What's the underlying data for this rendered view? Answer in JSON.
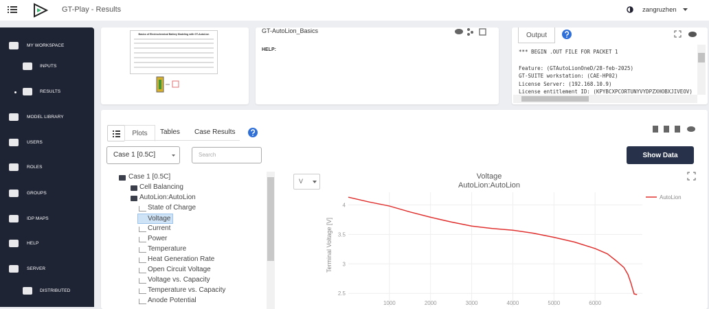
{
  "header": {
    "title": "GT-Play - Results",
    "user": "zangruzhen"
  },
  "sidebar": [
    "MY WORKSPACE",
    "INPUTS",
    "RESULTS",
    "MODEL LIBRARY",
    "USERS",
    "ROLES",
    "GROUPS",
    "IDP MAPS",
    "HELP",
    "SERVER",
    "DISTRIBUTED"
  ],
  "model_card": {
    "doc_title": "Basics of Electrochemical Battery Modeling with GT-AutoLion",
    "name": "GT-AutoLion_Basics",
    "help": "HELP:"
  },
  "output": {
    "tab": "Output",
    "lines": [
      "*** BEGIN .OUT FILE FOR PACKET 1",
      "Feature: (GTAutoLionOneD/28-feb-2025)",
      "GT-SUITE workstation: (CAE-HP02)",
      "License Server: (192.168.10.9)",
      "License entitlement ID: (KPYBCXPCORTUNYVYDPZXHOBXJIVEOV)"
    ]
  },
  "results": {
    "tabs": [
      "Plots",
      "Tables",
      "Case Results"
    ],
    "case": "Case 1 [0.5C]",
    "search": "Search",
    "button": "Show Data",
    "unit": "V",
    "tree": {
      "root": "Case 1 [0.5C]",
      "groups": [
        {
          "label": "Cell Balancing",
          "items": []
        },
        {
          "label": "AutoLion:AutoLion",
          "items": [
            "State of Charge",
            "Voltage",
            "Current",
            "Power",
            "Temperature",
            "Heat Generation Rate",
            "Open Circuit Voltage",
            "Voltage vs. Capacity",
            "Temperature vs. Capacity",
            "Anode Potential"
          ]
        }
      ]
    },
    "selected": "Voltage"
  },
  "chart_data": {
    "type": "line",
    "title": "Voltage",
    "subtitle": "AutoLion:AutoLion",
    "y_label": "Terminal Voltage [V]",
    "x": [
      0,
      500,
      1000,
      1500,
      2000,
      2500,
      3000,
      3500,
      4000,
      4500,
      5000,
      5500,
      6000,
      6300,
      6500,
      6700,
      6800,
      6870,
      6920,
      6950,
      7020
    ],
    "series": [
      {
        "name": "AutoLion",
        "color": "#e0302e",
        "values": [
          4.13,
          4.05,
          3.98,
          3.88,
          3.79,
          3.71,
          3.64,
          3.6,
          3.57,
          3.52,
          3.45,
          3.37,
          3.26,
          3.17,
          3.06,
          2.94,
          2.82,
          2.68,
          2.56,
          2.49,
          2.48
        ]
      }
    ],
    "xlim": [
      0,
      7150
    ],
    "ylim": [
      2.27,
      4.33
    ],
    "xticks": [
      1000,
      2000,
      3000,
      4000,
      5000,
      6000
    ],
    "yticks": [
      2.5,
      3,
      3.5,
      4
    ],
    "grid": true,
    "legend": "right"
  }
}
